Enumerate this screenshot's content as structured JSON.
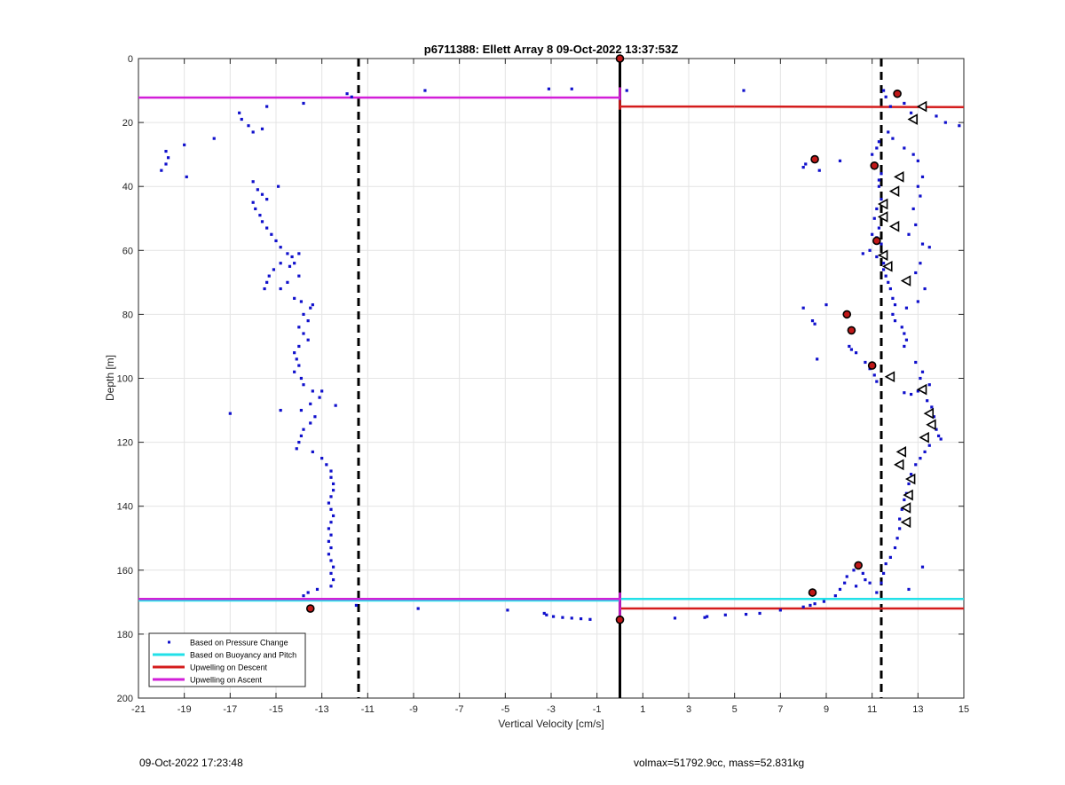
{
  "footer": {
    "timestamp": "09-Oct-2022 17:23:48",
    "float_info": "volmax=51792.9cc, mass=52.831kg"
  },
  "chart_data": {
    "type": "scatter",
    "title": "p6711388: Ellett Array 8 09-Oct-2022 13:37:53Z",
    "xlabel": "Vertical Velocity [cm/s]",
    "ylabel": "Depth [m]",
    "xlim": [
      -21,
      15
    ],
    "ylim": [
      0,
      200
    ],
    "y_reversed": true,
    "grid": true,
    "xticks": [
      -21,
      -19,
      -17,
      -15,
      -13,
      -11,
      -9,
      -7,
      -5,
      -3,
      -1,
      1,
      3,
      5,
      7,
      9,
      11,
      13,
      15
    ],
    "xtick_labels": [
      "-21",
      "-19",
      "-17",
      "-15",
      "-13",
      "-11",
      "-9",
      "-7",
      "-5",
      "-3",
      "-1",
      "1",
      "3",
      "5",
      "7",
      "9",
      "11",
      "13",
      "15"
    ],
    "yticks": [
      0,
      20,
      40,
      60,
      80,
      100,
      120,
      140,
      160,
      180,
      200
    ],
    "ytick_labels": [
      "0",
      "20",
      "40",
      "60",
      "80",
      "100",
      "120",
      "140",
      "160",
      "180",
      "200"
    ],
    "legend_position": "bottom-left",
    "colors": {
      "pressure": "#1010cc",
      "buoyancy": "#22e0e8",
      "descent": "#d41c1c",
      "ascent": "#d21fd8",
      "reference": "#000000",
      "marker_red": "#c01818"
    },
    "series": [
      {
        "name": "Based on Pressure Change",
        "style": "dots",
        "points": [
          [
            -20.0,
            35
          ],
          [
            -19.8,
            33
          ],
          [
            -19.7,
            31
          ],
          [
            -19.8,
            29
          ],
          [
            -19.0,
            27
          ],
          [
            -18.9,
            37
          ],
          [
            -17.7,
            25
          ],
          [
            -16.6,
            17
          ],
          [
            -16.5,
            19
          ],
          [
            -16.2,
            21
          ],
          [
            -16.0,
            23
          ],
          [
            -15.6,
            22
          ],
          [
            -15.4,
            15
          ],
          [
            -14.9,
            40
          ],
          [
            -16.0,
            38.5
          ],
          [
            -15.8,
            41
          ],
          [
            -15.6,
            42.5
          ],
          [
            -15.4,
            44
          ],
          [
            -16.0,
            45
          ],
          [
            -15.9,
            47
          ],
          [
            -15.7,
            49
          ],
          [
            -15.6,
            51
          ],
          [
            -15.4,
            53
          ],
          [
            -15.2,
            55
          ],
          [
            -15.0,
            57
          ],
          [
            -14.8,
            59
          ],
          [
            -14.5,
            61
          ],
          [
            -14.3,
            62
          ],
          [
            -14.0,
            61
          ],
          [
            -14.2,
            64
          ],
          [
            -14.4,
            65
          ],
          [
            -14.8,
            64
          ],
          [
            -15.1,
            66
          ],
          [
            -15.3,
            68
          ],
          [
            -15.4,
            70
          ],
          [
            -15.5,
            72
          ],
          [
            -14.8,
            72
          ],
          [
            -14.5,
            70
          ],
          [
            -14.0,
            68
          ],
          [
            -14.2,
            75
          ],
          [
            -13.9,
            76
          ],
          [
            -13.5,
            78
          ],
          [
            -13.4,
            77
          ],
          [
            -13.8,
            80
          ],
          [
            -13.6,
            82
          ],
          [
            -14.0,
            84
          ],
          [
            -13.8,
            86
          ],
          [
            -13.6,
            88
          ],
          [
            -14.0,
            90
          ],
          [
            -14.2,
            92
          ],
          [
            -14.1,
            94
          ],
          [
            -14.0,
            96
          ],
          [
            -14.2,
            98
          ],
          [
            -13.9,
            100
          ],
          [
            -13.8,
            102
          ],
          [
            -13.4,
            104
          ],
          [
            -13.0,
            104
          ],
          [
            -13.1,
            106
          ],
          [
            -13.5,
            108
          ],
          [
            -13.9,
            110
          ],
          [
            -14.8,
            110
          ],
          [
            -12.4,
            108.5
          ],
          [
            -13.3,
            112
          ],
          [
            -13.5,
            114
          ],
          [
            -13.8,
            116
          ],
          [
            -13.9,
            118
          ],
          [
            -14.0,
            120
          ],
          [
            -14.1,
            122
          ],
          [
            -13.4,
            123
          ],
          [
            -13.0,
            125
          ],
          [
            -12.8,
            127
          ],
          [
            -12.6,
            129
          ],
          [
            -12.6,
            131
          ],
          [
            -12.5,
            133
          ],
          [
            -12.5,
            135
          ],
          [
            -12.6,
            137
          ],
          [
            -12.7,
            139
          ],
          [
            -12.6,
            141
          ],
          [
            -12.5,
            143
          ],
          [
            -12.6,
            145
          ],
          [
            -12.7,
            147
          ],
          [
            -12.6,
            149
          ],
          [
            -12.7,
            151
          ],
          [
            -12.6,
            153
          ],
          [
            -12.7,
            155
          ],
          [
            -12.6,
            157
          ],
          [
            -12.5,
            159
          ],
          [
            -12.6,
            161
          ],
          [
            -12.5,
            163
          ],
          [
            -12.6,
            165
          ],
          [
            -13.2,
            166
          ],
          [
            -13.6,
            167
          ],
          [
            -13.8,
            168
          ],
          [
            -17.0,
            111
          ],
          [
            -13.8,
            14
          ],
          [
            -11.9,
            11
          ],
          [
            -11.7,
            12
          ],
          [
            -8.5,
            10
          ],
          [
            -3.1,
            9.5
          ],
          [
            -2.1,
            9.5
          ],
          [
            0.3,
            10
          ],
          [
            5.4,
            10
          ],
          [
            -11.5,
            171
          ],
          [
            -8.8,
            172
          ],
          [
            -4.9,
            172.5
          ],
          [
            -3.3,
            173.5
          ],
          [
            -3.2,
            174
          ],
          [
            -2.9,
            174.5
          ],
          [
            -2.5,
            174.8
          ],
          [
            -2.1,
            175
          ],
          [
            -1.7,
            175.2
          ],
          [
            -1.3,
            175.4
          ],
          [
            2.4,
            175
          ],
          [
            3.7,
            174.8
          ],
          [
            3.8,
            174.5
          ],
          [
            4.6,
            174
          ],
          [
            5.5,
            173.8
          ],
          [
            6.1,
            173.5
          ],
          [
            7.0,
            172.5
          ],
          [
            8.0,
            171.5
          ],
          [
            8.3,
            171
          ],
          [
            8.5,
            170.5
          ],
          [
            8.9,
            169.8
          ],
          [
            9.4,
            168
          ],
          [
            9.6,
            166
          ],
          [
            9.8,
            164
          ],
          [
            9.9,
            162
          ],
          [
            10.2,
            160
          ],
          [
            10.6,
            161
          ],
          [
            10.7,
            163
          ],
          [
            10.3,
            165
          ],
          [
            10.9,
            164
          ],
          [
            11.2,
            167
          ],
          [
            8.0,
            78
          ],
          [
            8.4,
            82
          ],
          [
            8.5,
            83
          ],
          [
            8.6,
            94
          ],
          [
            9.0,
            77
          ],
          [
            8.0,
            34
          ],
          [
            8.1,
            33
          ],
          [
            8.7,
            35
          ],
          [
            9.6,
            32
          ],
          [
            10.0,
            90
          ],
          [
            10.1,
            91
          ],
          [
            10.3,
            92
          ],
          [
            10.7,
            95
          ],
          [
            10.9,
            97
          ],
          [
            11.1,
            99
          ],
          [
            11.2,
            101
          ],
          [
            11.3,
            26
          ],
          [
            11.2,
            28
          ],
          [
            11.0,
            30
          ],
          [
            11.1,
            33
          ],
          [
            11.4,
            36
          ],
          [
            11.3,
            38
          ],
          [
            11.3,
            40
          ],
          [
            11.4,
            44
          ],
          [
            11.2,
            47
          ],
          [
            11.1,
            50
          ],
          [
            11.3,
            53
          ],
          [
            11.0,
            55
          ],
          [
            11.2,
            56
          ],
          [
            11.4,
            58
          ],
          [
            10.9,
            60
          ],
          [
            10.6,
            61
          ],
          [
            11.2,
            62
          ],
          [
            11.5,
            64
          ],
          [
            11.5,
            66
          ],
          [
            11.6,
            68
          ],
          [
            11.7,
            70
          ],
          [
            11.8,
            72
          ],
          [
            11.9,
            75
          ],
          [
            12.0,
            77
          ],
          [
            11.9,
            80
          ],
          [
            12.0,
            82
          ],
          [
            12.3,
            84
          ],
          [
            12.4,
            86
          ],
          [
            12.5,
            88
          ],
          [
            12.4,
            90
          ],
          [
            11.7,
            23
          ],
          [
            11.9,
            25
          ],
          [
            12.4,
            28
          ],
          [
            12.8,
            30
          ],
          [
            13.0,
            32
          ],
          [
            13.2,
            37
          ],
          [
            13.0,
            40
          ],
          [
            13.1,
            43
          ],
          [
            12.8,
            47
          ],
          [
            12.9,
            52
          ],
          [
            12.6,
            55
          ],
          [
            13.2,
            58
          ],
          [
            13.5,
            59
          ],
          [
            13.1,
            64
          ],
          [
            12.9,
            67
          ],
          [
            13.3,
            72
          ],
          [
            13.0,
            76
          ],
          [
            12.5,
            78
          ],
          [
            12.9,
            95
          ],
          [
            13.1,
            100
          ],
          [
            13.2,
            98
          ],
          [
            13.5,
            102
          ],
          [
            13.0,
            104
          ],
          [
            12.4,
            104.5
          ],
          [
            12.7,
            105
          ],
          [
            13.4,
            107
          ],
          [
            13.6,
            109
          ],
          [
            13.7,
            112
          ],
          [
            13.8,
            116
          ],
          [
            13.9,
            118
          ],
          [
            14.0,
            119
          ],
          [
            13.5,
            121
          ],
          [
            13.3,
            123
          ],
          [
            13.1,
            125
          ],
          [
            12.9,
            127
          ],
          [
            12.7,
            130
          ],
          [
            12.6,
            133
          ],
          [
            12.5,
            136
          ],
          [
            12.4,
            138
          ],
          [
            12.3,
            141
          ],
          [
            12.2,
            144
          ],
          [
            12.2,
            147
          ],
          [
            12.1,
            150
          ],
          [
            12.0,
            153
          ],
          [
            11.8,
            156
          ],
          [
            11.6,
            158
          ],
          [
            11.5,
            161
          ],
          [
            11.4,
            164
          ],
          [
            12.6,
            166
          ],
          [
            13.2,
            159
          ],
          [
            11.6,
            12
          ],
          [
            11.8,
            15
          ],
          [
            12.4,
            14
          ],
          [
            12.7,
            17
          ],
          [
            13.8,
            18
          ],
          [
            14.2,
            20
          ],
          [
            14.8,
            21
          ],
          [
            11.5,
            10
          ],
          [
            12.2,
            11
          ]
        ]
      },
      {
        "name": "Based on Buoyancy and Pitch",
        "style": "line",
        "segments": [
          {
            "x": [
              -21,
              0
            ],
            "depth": [
              169.5,
              169.5
            ]
          },
          {
            "x": [
              0,
              15
            ],
            "depth": [
              169,
              169
            ]
          }
        ]
      },
      {
        "name": "Upwelling on Descent",
        "style": "line",
        "segments": [
          {
            "x": [
              0,
              5
            ],
            "depth": [
              15,
              15
            ]
          },
          {
            "x": [
              5,
              15
            ],
            "depth": [
              15,
              15.2
            ]
          },
          {
            "x": [
              0,
              15
            ],
            "depth": [
              172,
              172
            ]
          },
          {
            "x": [
              0,
              0
            ],
            "depth": [
              13,
              16
            ]
          }
        ]
      },
      {
        "name": "Upwelling on Ascent",
        "style": "line",
        "segments": [
          {
            "x": [
              -21,
              0
            ],
            "depth": [
              12.2,
              12.2
            ]
          },
          {
            "x": [
              -21,
              0
            ],
            "depth": [
              169,
              169
            ]
          },
          {
            "x": [
              0,
              0
            ],
            "depth": [
              9,
              13
            ]
          },
          {
            "x": [
              0,
              0
            ],
            "depth": [
              167,
              176
            ]
          }
        ]
      }
    ],
    "reference_lines": [
      {
        "kind": "vertical-solid",
        "x": 0
      },
      {
        "kind": "vertical-dashed",
        "x": -11.4
      },
      {
        "kind": "vertical-dashed",
        "x": 11.4
      }
    ],
    "red_markers": [
      [
        0,
        0
      ],
      [
        12.1,
        11
      ],
      [
        8.5,
        31.5
      ],
      [
        11.1,
        33.5
      ],
      [
        11.2,
        57
      ],
      [
        9.9,
        80
      ],
      [
        10.1,
        85
      ],
      [
        11.0,
        96
      ],
      [
        10.4,
        158.5
      ],
      [
        8.4,
        167
      ],
      [
        -13.5,
        172
      ],
      [
        0,
        175.5
      ]
    ],
    "triangle_markers": [
      [
        13.2,
        15
      ],
      [
        12.8,
        19
      ],
      [
        12.2,
        37
      ],
      [
        12.0,
        41.5
      ],
      [
        11.5,
        45.5
      ],
      [
        11.5,
        49.5
      ],
      [
        12.0,
        52.5
      ],
      [
        11.5,
        61.5
      ],
      [
        11.7,
        65
      ],
      [
        12.5,
        69.5
      ],
      [
        11.8,
        99.5
      ],
      [
        13.2,
        103.5
      ],
      [
        13.5,
        111
      ],
      [
        13.6,
        114.5
      ],
      [
        13.3,
        118.5
      ],
      [
        12.3,
        123
      ],
      [
        12.2,
        127
      ],
      [
        12.7,
        131.5
      ],
      [
        12.6,
        136.5
      ],
      [
        12.5,
        140.5
      ],
      [
        12.5,
        145
      ]
    ]
  }
}
